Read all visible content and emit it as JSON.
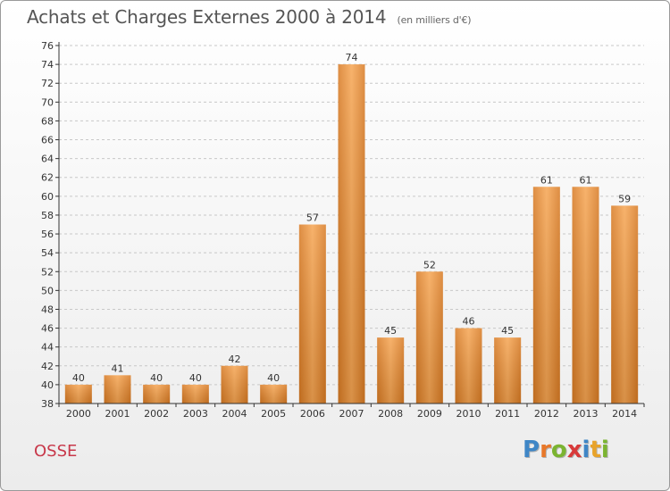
{
  "header": {
    "title": "Achats et Charges Externes 2000 à 2014",
    "unit": "(en milliers d'€)"
  },
  "commune": "OSSE",
  "logo": {
    "text": "Proxiti",
    "letters": [
      {
        "ch": "P",
        "color": "#3f86c6"
      },
      {
        "ch": "r",
        "color": "#e8782a"
      },
      {
        "ch": "o",
        "color": "#7bb431"
      },
      {
        "ch": "x",
        "color": "#d83a3a"
      },
      {
        "ch": "i",
        "color": "#3f86c6"
      },
      {
        "ch": "t",
        "color": "#e8a32a"
      },
      {
        "ch": "i",
        "color": "#7bb431"
      }
    ]
  },
  "colors": {
    "bar_light": "#f6a552",
    "bar_dark": "#d87a23",
    "grid": "#c8c8c8",
    "axis": "#333333",
    "text": "#333333"
  },
  "chart_data": {
    "type": "bar",
    "title": "Achats et Charges Externes 2000 à 2014",
    "xlabel": "",
    "ylabel": "",
    "categories": [
      "2000",
      "2001",
      "2002",
      "2003",
      "2004",
      "2005",
      "2006",
      "2007",
      "2008",
      "2009",
      "2010",
      "2011",
      "2012",
      "2013",
      "2014"
    ],
    "values": [
      40,
      41,
      40,
      40,
      42,
      40,
      57,
      74,
      45,
      52,
      46,
      45,
      61,
      61,
      59
    ],
    "ylim": [
      38,
      76
    ],
    "yticks": [
      38,
      40,
      42,
      44,
      46,
      48,
      50,
      52,
      54,
      56,
      58,
      60,
      62,
      64,
      66,
      68,
      70,
      72,
      74,
      76
    ],
    "grid": "horizontal-dashed",
    "legend": "none"
  }
}
